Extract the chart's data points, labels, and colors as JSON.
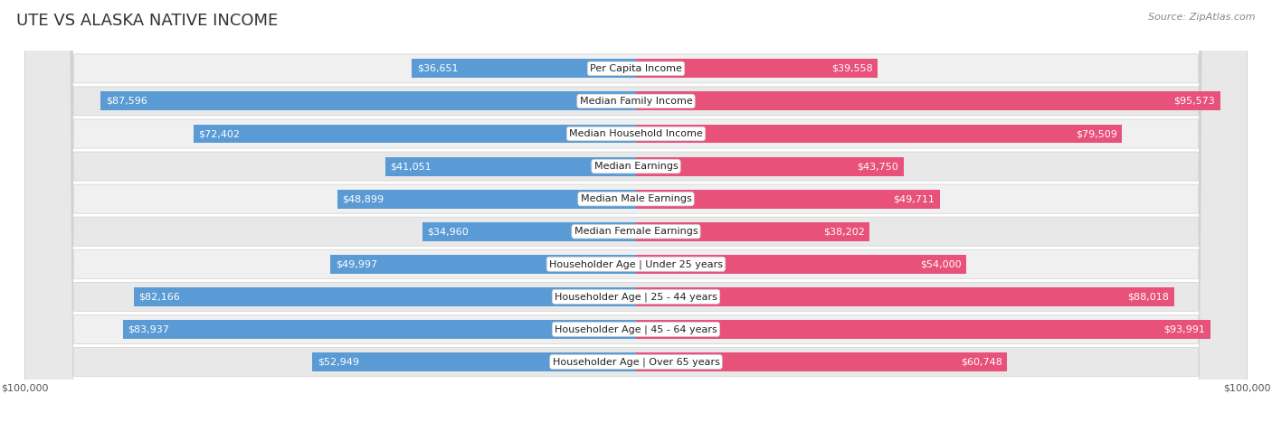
{
  "title": "UTE VS ALASKA NATIVE INCOME",
  "source": "Source: ZipAtlas.com",
  "categories": [
    "Per Capita Income",
    "Median Family Income",
    "Median Household Income",
    "Median Earnings",
    "Median Male Earnings",
    "Median Female Earnings",
    "Householder Age | Under 25 years",
    "Householder Age | 25 - 44 years",
    "Householder Age | 45 - 64 years",
    "Householder Age | Over 65 years"
  ],
  "ute_values": [
    36651,
    87596,
    72402,
    41051,
    48899,
    34960,
    49997,
    82166,
    83937,
    52949
  ],
  "alaska_values": [
    39558,
    95573,
    79509,
    43750,
    49711,
    38202,
    54000,
    88018,
    93991,
    60748
  ],
  "ute_labels": [
    "$36,651",
    "$87,596",
    "$72,402",
    "$41,051",
    "$48,899",
    "$34,960",
    "$49,997",
    "$82,166",
    "$83,937",
    "$52,949"
  ],
  "alaska_labels": [
    "$39,558",
    "$95,573",
    "$79,509",
    "$43,750",
    "$49,711",
    "$38,202",
    "$54,000",
    "$88,018",
    "$93,991",
    "$60,748"
  ],
  "max_value": 100000,
  "ute_color_light": "#adc8e8",
  "ute_color_dark": "#5b9bd5",
  "alaska_color_light": "#f5a7c0",
  "alaska_color_dark": "#e8517a",
  "row_bg_even": "#f0f0f0",
  "row_bg_odd": "#e8e8e8",
  "row_border_color": "#d0d0d0",
  "legend_ute_color": "#7ab4de",
  "legend_alaska_color": "#e8728a",
  "title_fontsize": 13,
  "source_fontsize": 8,
  "bar_label_fontsize": 8,
  "category_fontsize": 8,
  "axis_label_fontsize": 8,
  "large_threshold": 20000,
  "inside_label_color": "white",
  "outside_label_color": "#444444"
}
